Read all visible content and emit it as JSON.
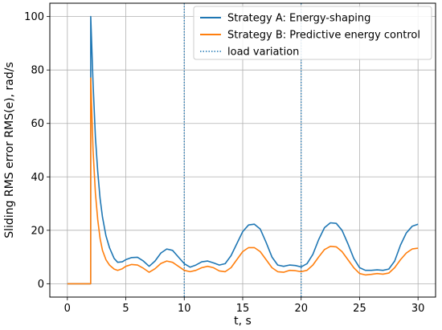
{
  "chart_data": {
    "type": "line",
    "xlabel": "t, s",
    "ylabel": "Sliding RMS error RMS(e), rad/s",
    "xlim": [
      -1.5,
      31.5
    ],
    "ylim": [
      -5,
      105
    ],
    "xticks": [
      0,
      5,
      10,
      15,
      20,
      25,
      30
    ],
    "yticks": [
      0,
      20,
      40,
      60,
      80,
      100
    ],
    "grid": true,
    "legend_position": "top-right",
    "series": [
      {
        "name": "Strategy A: Energy-shaping",
        "color": "#1f77b4",
        "x": [
          0,
          1.99,
          2.0,
          2.2,
          2.4,
          2.6,
          2.8,
          3.0,
          3.3,
          3.6,
          4.0,
          4.3,
          4.7,
          5.0,
          5.5,
          6.0,
          6.5,
          7.0,
          7.5,
          8.0,
          8.5,
          9.0,
          9.5,
          10.0,
          10.5,
          11.0,
          11.5,
          12.0,
          12.5,
          13.0,
          13.5,
          14.0,
          14.5,
          15.0,
          15.5,
          16.0,
          16.5,
          17.0,
          17.5,
          18.0,
          18.5,
          19.0,
          19.5,
          20.0,
          20.5,
          21.0,
          21.5,
          22.0,
          22.5,
          23.0,
          23.5,
          24.0,
          24.5,
          25.0,
          25.5,
          26.0,
          26.5,
          27.0,
          27.5,
          28.0,
          28.5,
          29.0,
          29.5,
          30.0
        ],
        "y": [
          0,
          0,
          100,
          75,
          55,
          42,
          32,
          25,
          18,
          13.5,
          9.5,
          8.0,
          8.2,
          9.0,
          9.8,
          9.9,
          8.5,
          6.5,
          8.5,
          11.5,
          13.0,
          12.5,
          10.0,
          7.5,
          6.2,
          7.0,
          8.2,
          8.5,
          7.8,
          7.0,
          7.5,
          10.5,
          15.0,
          19.5,
          22.0,
          22.3,
          20.5,
          15.5,
          10.0,
          7.0,
          6.5,
          7.0,
          6.8,
          6.3,
          7.5,
          11.0,
          16.5,
          21.0,
          22.8,
          22.6,
          20.0,
          15.0,
          9.5,
          6.0,
          5.0,
          5.0,
          5.2,
          5.0,
          5.5,
          8.5,
          14.5,
          19.0,
          21.5,
          22.3
        ]
      },
      {
        "name": "Strategy B: Predictive energy control",
        "color": "#ff7f0e",
        "x": [
          0,
          1.99,
          2.0,
          2.2,
          2.4,
          2.6,
          2.8,
          3.0,
          3.3,
          3.6,
          4.0,
          4.3,
          4.7,
          5.0,
          5.5,
          6.0,
          6.5,
          7.0,
          7.5,
          8.0,
          8.5,
          9.0,
          9.5,
          10.0,
          10.5,
          11.0,
          11.5,
          12.0,
          12.5,
          13.0,
          13.5,
          14.0,
          14.5,
          15.0,
          15.5,
          16.0,
          16.5,
          17.0,
          17.5,
          18.0,
          18.5,
          19.0,
          19.5,
          20.0,
          20.5,
          21.0,
          21.5,
          22.0,
          22.5,
          23.0,
          23.5,
          24.0,
          24.5,
          25.0,
          25.5,
          26.0,
          26.5,
          27.0,
          27.5,
          28.0,
          28.5,
          29.0,
          29.5,
          30.0
        ],
        "y": [
          0,
          0,
          77,
          50,
          34,
          24,
          17,
          12.5,
          9.0,
          7.0,
          5.5,
          5.0,
          5.6,
          6.5,
          7.2,
          7.0,
          5.8,
          4.3,
          5.6,
          7.6,
          8.5,
          8.0,
          6.5,
          5.0,
          4.5,
          5.0,
          6.0,
          6.5,
          6.0,
          4.8,
          4.5,
          6.0,
          9.0,
          12.0,
          13.5,
          13.5,
          12.0,
          9.0,
          6.0,
          4.5,
          4.3,
          5.0,
          4.9,
          4.5,
          5.0,
          7.0,
          10.0,
          12.8,
          14.0,
          13.8,
          12.0,
          9.0,
          6.0,
          3.8,
          3.3,
          3.5,
          3.8,
          3.6,
          4.0,
          6.0,
          9.0,
          11.5,
          13.0,
          13.3
        ]
      }
    ],
    "vlines": [
      {
        "name": "load variation",
        "x": 10,
        "color": "#1f77b4"
      },
      {
        "name": "load variation",
        "x": 20,
        "color": "#1f77b4"
      }
    ],
    "legend": [
      {
        "label": "Strategy A: Energy-shaping",
        "color": "#1f77b4",
        "style": "solid"
      },
      {
        "label": "Strategy B: Predictive energy control",
        "color": "#ff7f0e",
        "style": "solid"
      },
      {
        "label": "load variation",
        "color": "#1f77b4",
        "style": "dotted"
      }
    ]
  }
}
